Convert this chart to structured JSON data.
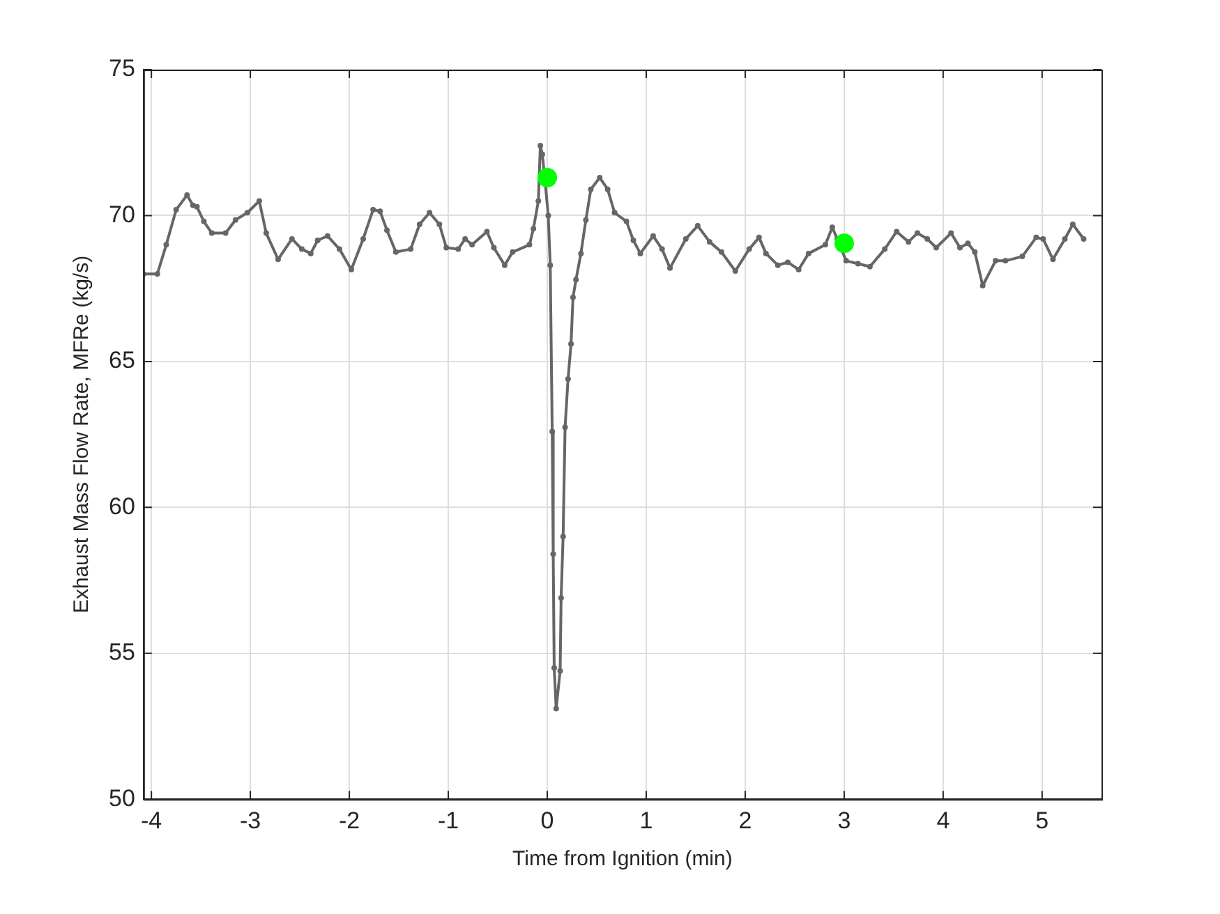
{
  "chart_data": {
    "type": "line",
    "xlabel": "Time from Ignition (min)",
    "ylabel": "Exhaust Mass Flow Rate, MFRe (kg/s)",
    "xlim": [
      -4.08,
      5.6
    ],
    "xticks": [
      -4,
      -3,
      -2,
      -1,
      0,
      1,
      2,
      3,
      4,
      5
    ],
    "ylim": [
      50,
      75
    ],
    "yticks": [
      50,
      55,
      60,
      65,
      70,
      75
    ],
    "grid": true,
    "legend": false,
    "marker": "circle",
    "line_style": "solid",
    "series": [
      {
        "type": "line",
        "color": "#666666",
        "x": [
          -4.08,
          -3.94,
          -3.85,
          -3.75,
          -3.64,
          -3.58,
          -3.54,
          -3.47,
          -3.39,
          -3.25,
          -3.15,
          -3.03,
          -2.91,
          -2.84,
          -2.72,
          -2.58,
          -2.48,
          -2.39,
          -2.32,
          -2.22,
          -2.1,
          -1.98,
          -1.86,
          -1.76,
          -1.69,
          -1.62,
          -1.53,
          -1.38,
          -1.29,
          -1.19,
          -1.09,
          -1.02,
          -0.9,
          -0.83,
          -0.76,
          -0.61,
          -0.54,
          -0.43,
          -0.35,
          -0.18,
          -0.14,
          -0.09,
          -0.07,
          -0.05,
          -0.02,
          0.01,
          0.03,
          0.05,
          0.06,
          0.07,
          0.09,
          0.13,
          0.14,
          0.16,
          0.18,
          0.21,
          0.24,
          0.26,
          0.29,
          0.34,
          0.39,
          0.44,
          0.53,
          0.61,
          0.68,
          0.8,
          0.87,
          0.94,
          1.07,
          1.16,
          1.24,
          1.4,
          1.52,
          1.64,
          1.76,
          1.9,
          2.04,
          2.14,
          2.21,
          2.33,
          2.43,
          2.54,
          2.64,
          2.81,
          2.88,
          2.93,
          3.02,
          3.14,
          3.26,
          3.41,
          3.53,
          3.65,
          3.74,
          3.84,
          3.93,
          4.08,
          4.17,
          4.25,
          4.32,
          4.4,
          4.53,
          4.63,
          4.8,
          4.94,
          5.01,
          5.11,
          5.23,
          5.31,
          5.42
        ],
        "values": [
          68.0,
          68.0,
          69.0,
          70.2,
          70.7,
          70.35,
          70.3,
          69.8,
          69.4,
          69.4,
          69.85,
          70.1,
          70.5,
          69.4,
          68.5,
          69.2,
          68.85,
          68.7,
          69.15,
          69.3,
          68.85,
          68.15,
          69.2,
          70.2,
          70.15,
          69.5,
          68.75,
          68.85,
          69.7,
          70.1,
          69.7,
          68.9,
          68.85,
          69.2,
          69.0,
          69.45,
          68.9,
          68.3,
          68.75,
          69.0,
          69.55,
          70.5,
          72.4,
          72.1,
          71.1,
          70.0,
          68.3,
          62.6,
          58.4,
          54.5,
          53.1,
          54.4,
          56.9,
          59.0,
          62.75,
          64.4,
          65.6,
          67.2,
          67.8,
          68.7,
          69.85,
          70.9,
          71.3,
          70.9,
          70.1,
          69.8,
          69.15,
          68.7,
          69.3,
          68.85,
          68.2,
          69.2,
          69.65,
          69.1,
          68.75,
          68.1,
          68.85,
          69.25,
          68.7,
          68.3,
          68.4,
          68.15,
          68.7,
          69.0,
          69.6,
          69.2,
          68.45,
          68.35,
          68.25,
          68.85,
          69.45,
          69.1,
          69.4,
          69.2,
          68.9,
          69.4,
          68.9,
          69.05,
          68.75,
          67.6,
          68.45,
          68.45,
          68.6,
          69.25,
          69.2,
          68.5,
          69.2,
          69.7,
          69.2
        ]
      },
      {
        "type": "scatter",
        "color": "#00ff00",
        "x": [
          0,
          3
        ],
        "values": [
          71.3,
          69.05
        ]
      }
    ]
  }
}
